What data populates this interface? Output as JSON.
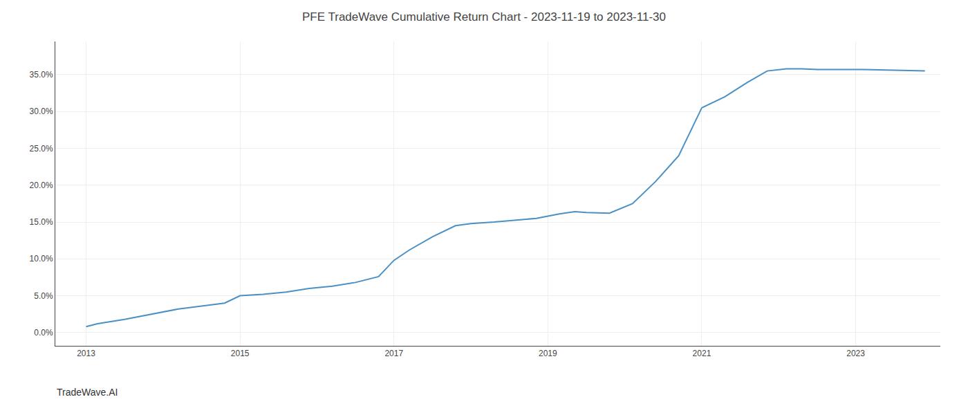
{
  "chart_data": {
    "type": "line",
    "title": "PFE TradeWave Cumulative Return Chart - 2023-11-19 to 2023-11-30",
    "annotations": [
      "TradeWave.AI"
    ],
    "x": [
      2013.0,
      2013.15,
      2013.5,
      2013.9,
      2014.2,
      2014.5,
      2014.8,
      2015.0,
      2015.3,
      2015.6,
      2015.9,
      2016.2,
      2016.5,
      2016.8,
      2017.0,
      2017.2,
      2017.5,
      2017.8,
      2018.0,
      2018.3,
      2018.6,
      2018.85,
      2019.0,
      2019.15,
      2019.35,
      2019.5,
      2019.8,
      2020.1,
      2020.4,
      2020.7,
      2021.0,
      2021.3,
      2021.6,
      2021.85,
      2022.1,
      2022.3,
      2022.5,
      2022.7,
      2022.9,
      2023.1,
      2023.5,
      2023.9
    ],
    "values": [
      0.008,
      0.012,
      0.018,
      0.026,
      0.032,
      0.036,
      0.04,
      0.05,
      0.052,
      0.055,
      0.06,
      0.063,
      0.068,
      0.076,
      0.098,
      0.112,
      0.13,
      0.145,
      0.148,
      0.15,
      0.153,
      0.155,
      0.158,
      0.161,
      0.164,
      0.163,
      0.162,
      0.175,
      0.205,
      0.24,
      0.305,
      0.32,
      0.34,
      0.355,
      0.358,
      0.358,
      0.357,
      0.357,
      0.357,
      0.357,
      0.356,
      0.355
    ],
    "color": "#4a90c4",
    "xlim": [
      2012.6,
      2024.1
    ],
    "xticks": [
      2013,
      2015,
      2017,
      2019,
      2021,
      2023
    ],
    "ylim": [
      -0.018,
      0.395
    ],
    "yticks": [
      {
        "value": 0.0,
        "label": "0.0%"
      },
      {
        "value": 0.05,
        "label": "5.0%"
      },
      {
        "value": 0.1,
        "label": "10.0%"
      },
      {
        "value": 0.15,
        "label": "15.0%"
      },
      {
        "value": 0.2,
        "label": "20.0%"
      },
      {
        "value": 0.25,
        "label": "25.0%"
      },
      {
        "value": 0.3,
        "label": "30.0%"
      },
      {
        "value": 0.35,
        "label": "35.0%"
      }
    ],
    "grid": true
  }
}
